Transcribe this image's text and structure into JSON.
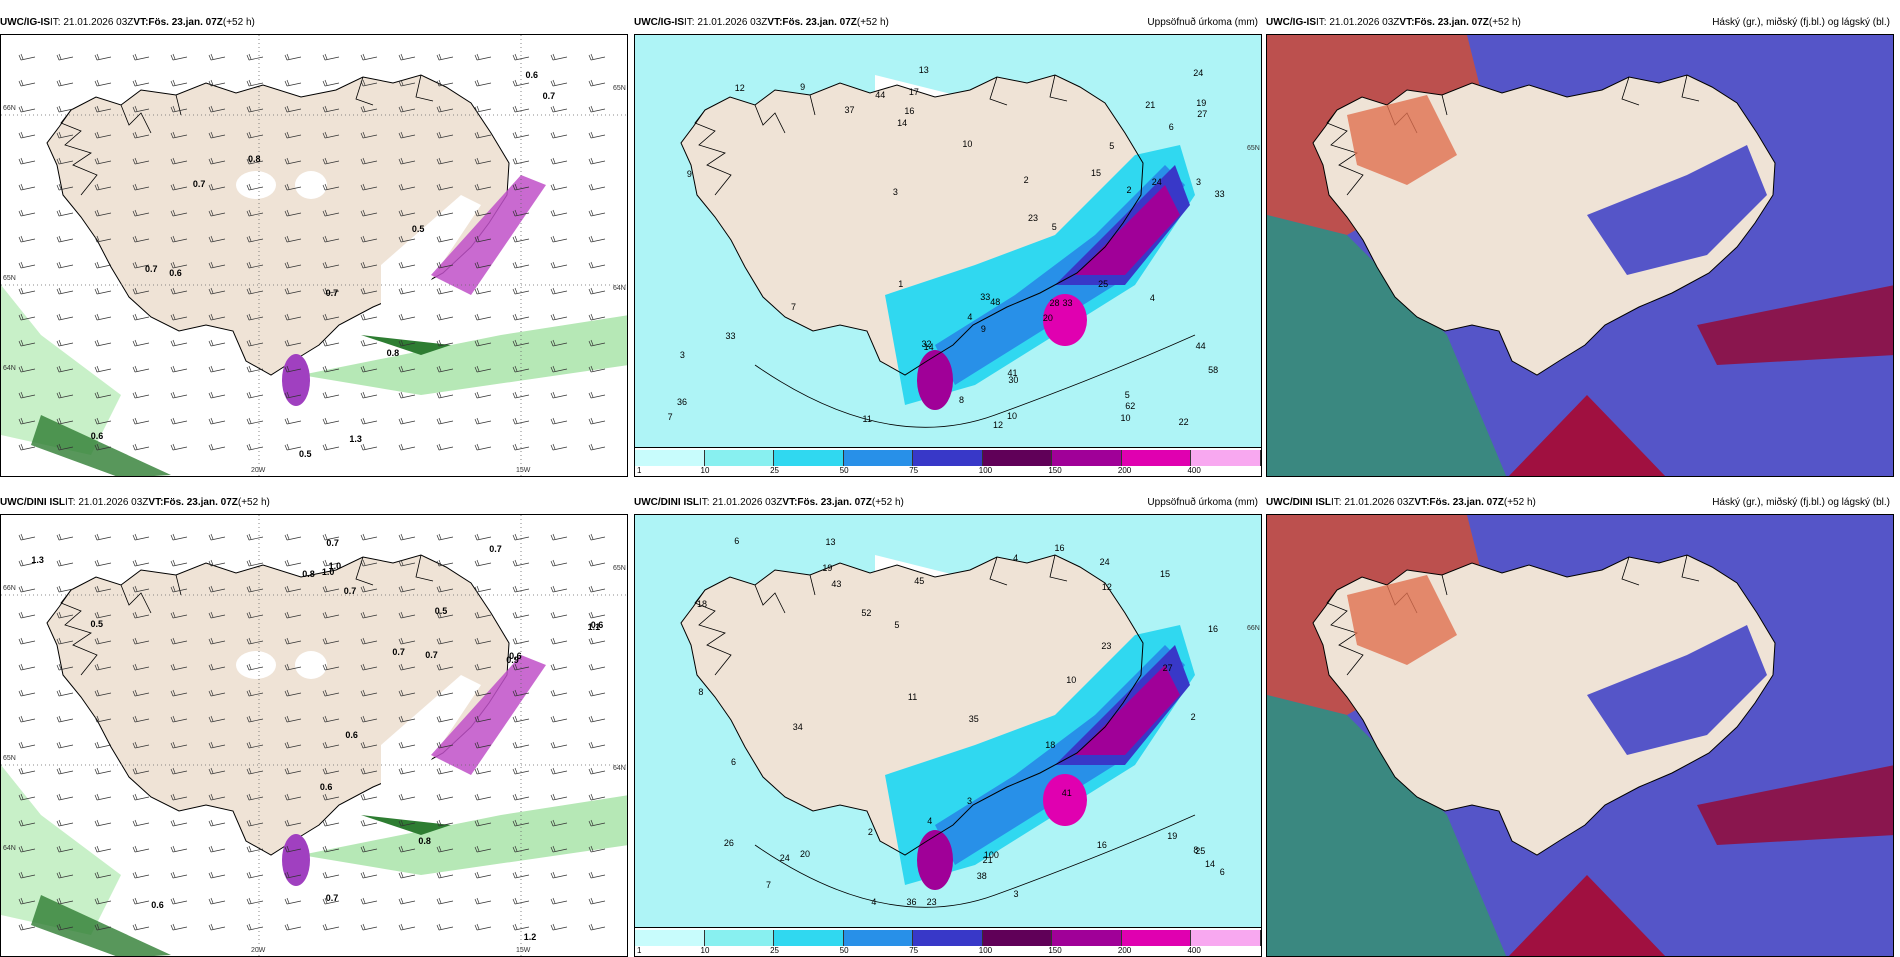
{
  "panels": [
    {
      "model": "UWC/IG-IS",
      "it": "IT: 21.01.2026 03Z",
      "vt_label": "VT:",
      "vt": "Fös. 23.jan. 07Z",
      "lead": "(+52 h)",
      "right": "",
      "kind": "wind",
      "labels": [
        "0.5",
        "0.5",
        "0.6",
        "0.7",
        "0.6",
        "0.7",
        "0.8",
        "0.7",
        "0.8",
        "1.3",
        "0.7",
        "0.6"
      ],
      "ax": [
        "66N",
        "64N",
        "65N",
        "20W",
        "15W",
        "65N",
        "64N"
      ]
    },
    {
      "model": "UWC/IG-IS",
      "it": "IT: 21.01.2026 03Z",
      "vt_label": "VT:",
      "vt": "Fös. 23.jan. 07Z",
      "lead": "(+52 h)",
      "right": "Uppsöfnuð úrkoma (mm)",
      "kind": "precip",
      "labels": [
        "8",
        "9",
        "9",
        "3",
        "1",
        "2",
        "6",
        "13",
        "10",
        "37",
        "32",
        "17",
        "11",
        "10",
        "5",
        "3",
        "3",
        "27",
        "23",
        "33",
        "16",
        "14",
        "22",
        "5",
        "12",
        "7",
        "5",
        "2",
        "4",
        "48",
        "21",
        "24",
        "19",
        "28",
        "33",
        "44",
        "36",
        "62",
        "58",
        "41",
        "33",
        "9",
        "33",
        "30",
        "24",
        "20",
        "25",
        "15",
        "44",
        "7",
        "14",
        "12",
        "10",
        "4"
      ],
      "ax": [
        "65N"
      ]
    },
    {
      "model": "UWC/IG-IS",
      "it": "IT: 21.01.2026 03Z",
      "vt_label": "VT:",
      "vt": "Fös. 23.jan. 07Z",
      "lead": "(+52 h)",
      "right": "Háský (gr.), miðský (fj.bl.) og lágský (bl.)",
      "kind": "cloud",
      "labels": [],
      "ax": []
    },
    {
      "model": "UWC/DINI ISL",
      "it": "IT: 21.01.2026 03Z",
      "vt_label": "VT:",
      "vt": "Fös. 23.jan. 07Z",
      "lead": "(+52 h)",
      "right": "",
      "kind": "wind",
      "labels": [
        "0.6",
        "0.5",
        "0.6",
        "0.8",
        "0.7",
        "0.6",
        "1.0",
        "0.5",
        "1.3",
        "1.2",
        "0.8",
        "1.1",
        "0.7",
        "0.9",
        "1.0",
        "0.7",
        "0.7",
        "0.7",
        "0.6",
        "0.6",
        "0.7"
      ],
      "ax": [
        "66N",
        "64N",
        "65N",
        "20W",
        "15W",
        "65N",
        "64N"
      ]
    },
    {
      "model": "UWC/DINI ISL",
      "it": "IT: 21.01.2026 03Z",
      "vt_label": "VT:",
      "vt": "Fös. 23.jan. 07Z",
      "lead": "(+52 h)",
      "right": "Uppsöfnuð úrkoma (mm)",
      "kind": "precip",
      "labels": [
        "8",
        "4",
        "2",
        "6",
        "16",
        "27",
        "35",
        "34",
        "4",
        "3",
        "3",
        "6",
        "5",
        "2",
        "13",
        "12",
        "21",
        "19",
        "23",
        "24",
        "7",
        "4",
        "20",
        "16",
        "26",
        "18",
        "24",
        "11",
        "15",
        "16",
        "23",
        "14",
        "19",
        "43",
        "36",
        "41",
        "100",
        "38",
        "52",
        "45",
        "18",
        "25",
        "6",
        "8",
        "10"
      ],
      "ax": [
        "66N"
      ]
    },
    {
      "model": "UWC/DINI ISL",
      "it": "IT: 21.01.2026 03Z",
      "vt_label": "VT:",
      "vt": "Fös. 23.jan. 07Z",
      "lead": "(+52 h)",
      "right": "Háský (gr.), miðský (fj.bl.) og lágský (bl.)",
      "kind": "cloud",
      "labels": [],
      "ax": []
    }
  ],
  "colorbar": {
    "ticks": [
      "1",
      "10",
      "25",
      "50",
      "75",
      "100",
      "150",
      "200",
      "400"
    ],
    "colors": [
      "#c8fcfc",
      "#88f0f0",
      "#30d8f0",
      "#2890e8",
      "#3838c8",
      "#600058",
      "#a00098",
      "#e000b0",
      "#f8a8f0"
    ]
  },
  "colors": {
    "land": "#efe3d6",
    "sea_precip": "#aef4f6",
    "cloud_high": "#c85040",
    "cloud_mid": "#5555c8",
    "cloud_low": "#3a8880",
    "wind_green": "#a0e0a0"
  }
}
